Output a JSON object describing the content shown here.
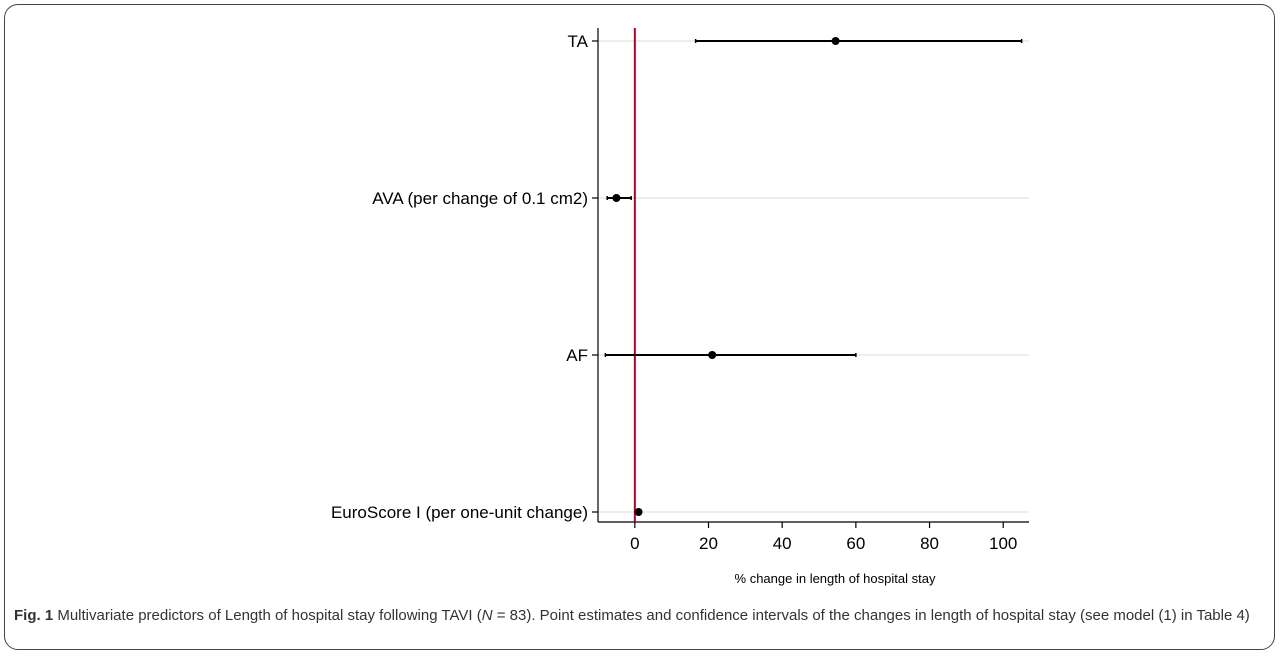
{
  "chart_data": {
    "type": "scatter",
    "subtype": "forest-plot",
    "xlabel": "% change in length of hospital stay",
    "ylabel": "",
    "xlim": [
      -10,
      107
    ],
    "xticks": [
      0,
      20,
      40,
      60,
      80,
      100
    ],
    "reference_line": {
      "x": 0,
      "color": "#b0002a"
    },
    "grid": "horizontal",
    "marker_color": "#000000",
    "rows": [
      {
        "label": "TA",
        "estimate": 54.5,
        "lower": 16.5,
        "upper": 105.0
      },
      {
        "label": "AVA (per change of 0.1 cm2)",
        "estimate": -5.0,
        "lower": -7.5,
        "upper": -1.0
      },
      {
        "label": "AF",
        "estimate": 21.0,
        "lower": -8.0,
        "upper": 60.0
      },
      {
        "label": "EuroScore I (per one-unit change)",
        "estimate": 1.0,
        "lower": 0.5,
        "upper": 1.5
      }
    ]
  },
  "caption": {
    "fig_label": "Fig. 1",
    "text_before_n": " Multivariate predictors of Length of hospital stay following TAVI (",
    "n_symbol": "N",
    "text_after_n": " = 83). Point estimates and confidence intervals of the changes in length of hospital stay (see model (1) in Table 4)"
  }
}
